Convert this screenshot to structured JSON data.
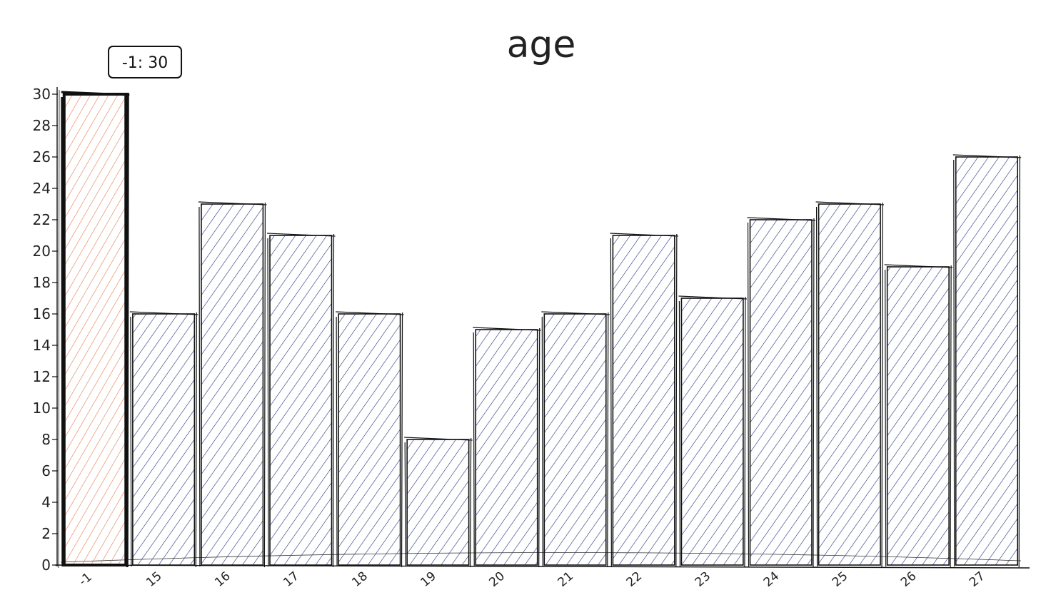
{
  "chart_data": {
    "type": "bar",
    "title": "age",
    "xlabel": "",
    "ylabel": "",
    "categories": [
      "-1",
      "15",
      "16",
      "17",
      "18",
      "19",
      "20",
      "21",
      "22",
      "23",
      "24",
      "25",
      "26",
      "27"
    ],
    "values": [
      30,
      16,
      23,
      21,
      16,
      8,
      15,
      16,
      21,
      17,
      22,
      23,
      19,
      26
    ],
    "ylim": [
      0,
      30
    ],
    "yticks": [
      0,
      2,
      4,
      6,
      8,
      10,
      12,
      14,
      16,
      18,
      20,
      22,
      24,
      26,
      28,
      30
    ],
    "grid": false,
    "highlight_index": 0,
    "colors": {
      "bar": "#1f2f7a",
      "highlight": "#e07a4f",
      "stroke": "#111111"
    },
    "tooltip": {
      "text": "-1: 30"
    }
  }
}
